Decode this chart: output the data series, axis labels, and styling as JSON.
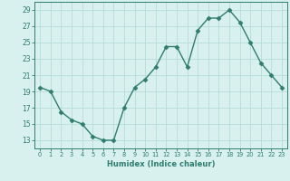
{
  "x": [
    0,
    1,
    2,
    3,
    4,
    5,
    6,
    7,
    8,
    9,
    10,
    11,
    12,
    13,
    14,
    15,
    16,
    17,
    18,
    19,
    20,
    21,
    22,
    23
  ],
  "y": [
    19.5,
    19.0,
    16.5,
    15.5,
    15.0,
    13.5,
    13.0,
    13.0,
    17.0,
    19.5,
    20.5,
    22.0,
    24.5,
    24.5,
    22.0,
    26.5,
    28.0,
    28.0,
    29.0,
    27.5,
    25.0,
    22.5,
    21.0,
    19.5
  ],
  "line_color": "#2e7d6e",
  "marker": "D",
  "marker_size": 2.5,
  "bg_color": "#d8f0ee",
  "grid_color": "#b8dcd8",
  "xlabel": "Humidex (Indice chaleur)",
  "ylim": [
    12,
    30
  ],
  "yticks": [
    13,
    15,
    17,
    19,
    21,
    23,
    25,
    27,
    29
  ],
  "xticks": [
    0,
    1,
    2,
    3,
    4,
    5,
    6,
    7,
    8,
    9,
    10,
    11,
    12,
    13,
    14,
    15,
    16,
    17,
    18,
    19,
    20,
    21,
    22,
    23
  ],
  "xlim": [
    -0.5,
    23.5
  ],
  "tick_color": "#2e7d6e",
  "label_color": "#2e7d6e"
}
